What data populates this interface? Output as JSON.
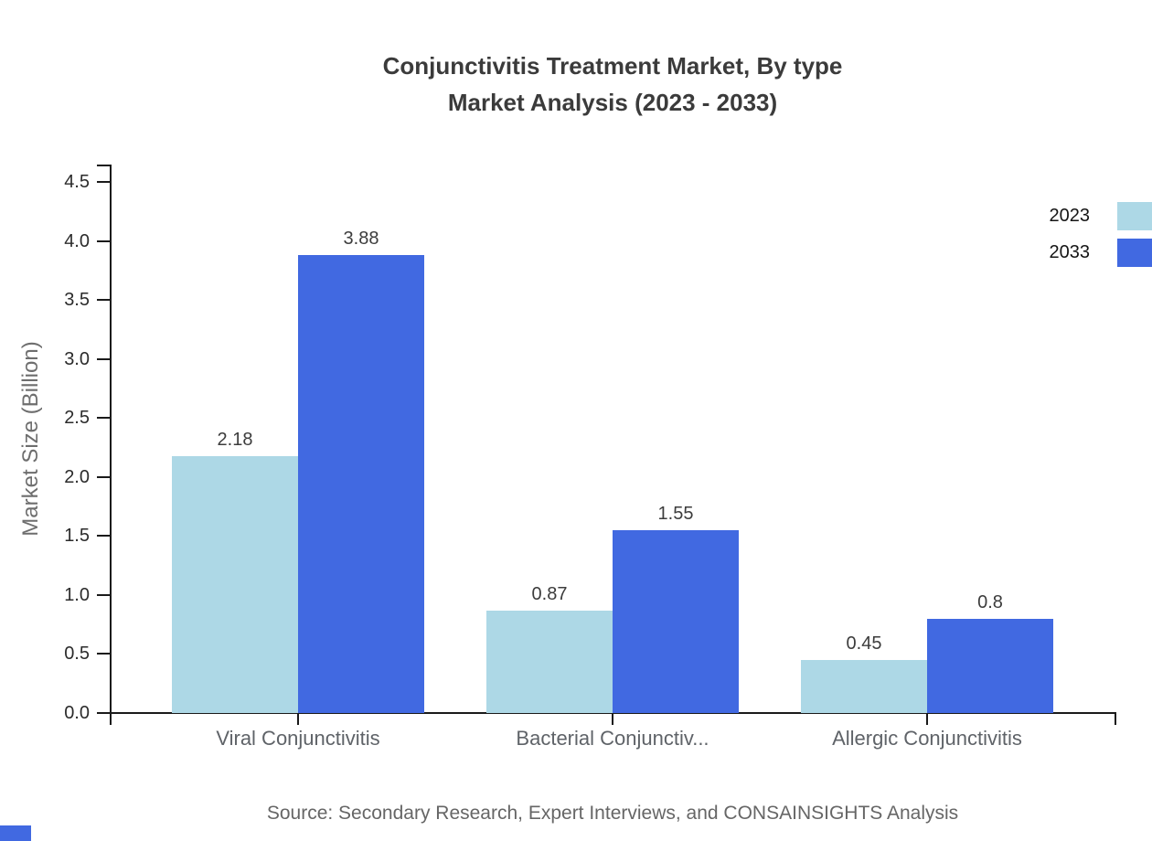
{
  "title": {
    "line1": "Conjunctivitis Treatment Market, By type",
    "line2": "Market Analysis (2023 - 2033)"
  },
  "legend": {
    "items": [
      {
        "label": "2023",
        "color": "#ADD8E6"
      },
      {
        "label": "2033",
        "color": "#4169E1"
      }
    ]
  },
  "source": "Source: Secondary Research, Expert Interviews, and CONSAINSIGHTS Analysis",
  "accent_color": "#4169E1",
  "chart_data": {
    "type": "bar",
    "title": "Conjunctivitis Treatment Market, By type — Market Analysis (2023 - 2033)",
    "xlabel": "",
    "ylabel": "Market Size (Billion)",
    "categories": [
      "Viral Conjunctivitis",
      "Bacterial Conjunctiv...",
      "Allergic Conjunctivitis"
    ],
    "series": [
      {
        "name": "2023",
        "color": "#ADD8E6",
        "values": [
          2.18,
          0.87,
          0.45
        ],
        "value_labels": [
          "2.18",
          "0.87",
          "0.45"
        ]
      },
      {
        "name": "2033",
        "color": "#4169E1",
        "values": [
          3.88,
          1.55,
          0.8
        ],
        "value_labels": [
          "3.88",
          "1.55",
          "0.8"
        ]
      }
    ],
    "ylim": [
      0,
      4.5
    ],
    "yticks": [
      "0.0",
      "0.5",
      "1.0",
      "1.5",
      "2.0",
      "2.5",
      "3.0",
      "3.5",
      "4.0",
      "4.5"
    ],
    "grid": false,
    "legend_position": "top-right"
  }
}
